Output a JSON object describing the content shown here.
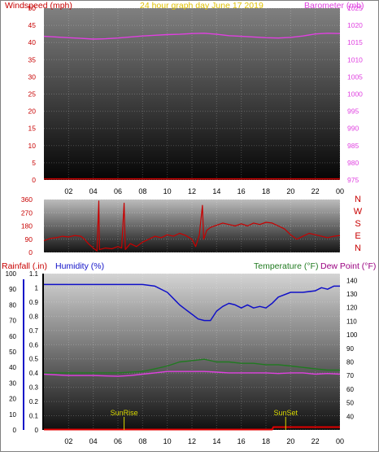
{
  "header": {
    "left": "Windspeed (mph)",
    "center": "24 hour graph day    June 17 2019",
    "right": "Barometer (mb)"
  },
  "colors": {
    "wind": "#c80000",
    "baro": "#e040e0",
    "title": "#e0c000",
    "humidity": "#1010c8",
    "temperature": "#207a20",
    "dew": "#9a0080",
    "rain": "#e00000",
    "event": "#d8d800"
  },
  "x_ticks": [
    "02",
    "04",
    "06",
    "08",
    "10",
    "12",
    "14",
    "16",
    "18",
    "20",
    "22",
    "00"
  ],
  "panel1": {
    "wind_ticks": [
      "0",
      "5",
      "10",
      "15",
      "20",
      "25",
      "30",
      "35",
      "40",
      "45",
      "50"
    ],
    "baro_ticks": [
      "975",
      "980",
      "985",
      "990",
      "995",
      "1000",
      "1005",
      "1010",
      "1015",
      "1020",
      "1025"
    ],
    "wind_range": [
      0,
      50
    ],
    "baro_range": [
      975,
      1025
    ],
    "baro_series": [
      {
        "x": 0,
        "y": 1016.8
      },
      {
        "x": 1,
        "y": 1016.6
      },
      {
        "x": 2,
        "y": 1016.4
      },
      {
        "x": 3,
        "y": 1016.2
      },
      {
        "x": 4,
        "y": 1016.0
      },
      {
        "x": 5,
        "y": 1016.1
      },
      {
        "x": 6,
        "y": 1016.3
      },
      {
        "x": 7,
        "y": 1016.6
      },
      {
        "x": 8,
        "y": 1016.9
      },
      {
        "x": 9,
        "y": 1017.1
      },
      {
        "x": 10,
        "y": 1017.3
      },
      {
        "x": 11,
        "y": 1017.4
      },
      {
        "x": 12,
        "y": 1017.6
      },
      {
        "x": 13,
        "y": 1017.7
      },
      {
        "x": 14,
        "y": 1017.4
      },
      {
        "x": 15,
        "y": 1017.0
      },
      {
        "x": 16,
        "y": 1016.8
      },
      {
        "x": 17,
        "y": 1016.6
      },
      {
        "x": 18,
        "y": 1016.4
      },
      {
        "x": 19,
        "y": 1016.3
      },
      {
        "x": 20,
        "y": 1016.5
      },
      {
        "x": 21,
        "y": 1016.9
      },
      {
        "x": 22,
        "y": 1017.5
      },
      {
        "x": 23,
        "y": 1017.7
      },
      {
        "x": 24,
        "y": 1017.6
      }
    ],
    "wind_series": [
      {
        "x": 0,
        "y": 0.3
      },
      {
        "x": 24,
        "y": 0.3
      }
    ]
  },
  "panel2": {
    "ticks": [
      "0",
      "90",
      "180",
      "270",
      "360"
    ],
    "dir_labels": [
      "N",
      "W",
      "S",
      "E",
      "N"
    ],
    "range": [
      0,
      360
    ],
    "series": [
      {
        "x": 0,
        "y": 80
      },
      {
        "x": 0.5,
        "y": 95
      },
      {
        "x": 1,
        "y": 100
      },
      {
        "x": 1.5,
        "y": 110
      },
      {
        "x": 2,
        "y": 105
      },
      {
        "x": 2.5,
        "y": 115
      },
      {
        "x": 3,
        "y": 110
      },
      {
        "x": 3.3,
        "y": 90
      },
      {
        "x": 3.6,
        "y": 60
      },
      {
        "x": 4,
        "y": 30
      },
      {
        "x": 4.3,
        "y": 10
      },
      {
        "x": 4.45,
        "y": 350
      },
      {
        "x": 4.5,
        "y": 20
      },
      {
        "x": 5,
        "y": 30
      },
      {
        "x": 5.5,
        "y": 25
      },
      {
        "x": 6,
        "y": 40
      },
      {
        "x": 6.3,
        "y": 30
      },
      {
        "x": 6.5,
        "y": 335
      },
      {
        "x": 6.6,
        "y": 20
      },
      {
        "x": 7,
        "y": 60
      },
      {
        "x": 7.5,
        "y": 40
      },
      {
        "x": 8,
        "y": 70
      },
      {
        "x": 8.5,
        "y": 90
      },
      {
        "x": 9,
        "y": 110
      },
      {
        "x": 9.5,
        "y": 100
      },
      {
        "x": 10,
        "y": 120
      },
      {
        "x": 10.5,
        "y": 110
      },
      {
        "x": 11,
        "y": 130
      },
      {
        "x": 11.5,
        "y": 115
      },
      {
        "x": 12,
        "y": 90
      },
      {
        "x": 12.3,
        "y": 40
      },
      {
        "x": 12.6,
        "y": 120
      },
      {
        "x": 12.85,
        "y": 320
      },
      {
        "x": 12.95,
        "y": 90
      },
      {
        "x": 13.2,
        "y": 150
      },
      {
        "x": 13.5,
        "y": 170
      },
      {
        "x": 14,
        "y": 185
      },
      {
        "x": 14.5,
        "y": 200
      },
      {
        "x": 15,
        "y": 190
      },
      {
        "x": 15.5,
        "y": 180
      },
      {
        "x": 16,
        "y": 195
      },
      {
        "x": 16.5,
        "y": 180
      },
      {
        "x": 17,
        "y": 200
      },
      {
        "x": 17.5,
        "y": 190
      },
      {
        "x": 18,
        "y": 205
      },
      {
        "x": 18.5,
        "y": 200
      },
      {
        "x": 19,
        "y": 180
      },
      {
        "x": 19.5,
        "y": 160
      },
      {
        "x": 20,
        "y": 120
      },
      {
        "x": 20.5,
        "y": 90
      },
      {
        "x": 21,
        "y": 110
      },
      {
        "x": 21.5,
        "y": 130
      },
      {
        "x": 22,
        "y": 120
      },
      {
        "x": 22.5,
        "y": 110
      },
      {
        "x": 23,
        "y": 100
      },
      {
        "x": 23.5,
        "y": 110
      },
      {
        "x": 24,
        "y": 115
      }
    ]
  },
  "panel3": {
    "labels": {
      "rain": "Rainfall (.in)",
      "humidity": "Humidity (%)",
      "temperature": "Temperature (°F)",
      "dew": "Dew Point (°F)"
    },
    "humidity_ticks": [
      "0",
      "10",
      "20",
      "30",
      "40",
      "50",
      "60",
      "70",
      "80",
      "90",
      "100"
    ],
    "rain_ticks": [
      "0",
      "0.1",
      "0.2",
      "0.3",
      "0.4",
      "0.5",
      "0.6",
      "0.7",
      "0.8",
      "0.9",
      "1",
      "1.1"
    ],
    "temp_ticks": [
      "40",
      "50",
      "60",
      "70",
      "80",
      "90",
      "100",
      "110",
      "120",
      "130",
      "140"
    ],
    "humidity_range": [
      0,
      100
    ],
    "rain_range": [
      0,
      1.1
    ],
    "temp_range": [
      30,
      145
    ],
    "events": [
      {
        "label": "SunRise",
        "x": 6.5
      },
      {
        "label": "SunSet",
        "x": 19.6
      }
    ],
    "humidity_series": [
      {
        "x": 0,
        "y": 93
      },
      {
        "x": 1,
        "y": 93
      },
      {
        "x": 2,
        "y": 93
      },
      {
        "x": 3,
        "y": 93
      },
      {
        "x": 4,
        "y": 93
      },
      {
        "x": 5,
        "y": 93
      },
      {
        "x": 6,
        "y": 93
      },
      {
        "x": 7,
        "y": 93
      },
      {
        "x": 8,
        "y": 93
      },
      {
        "x": 9,
        "y": 92
      },
      {
        "x": 10,
        "y": 88
      },
      {
        "x": 10.5,
        "y": 84
      },
      {
        "x": 11,
        "y": 80
      },
      {
        "x": 11.5,
        "y": 77
      },
      {
        "x": 12,
        "y": 74
      },
      {
        "x": 12.5,
        "y": 71
      },
      {
        "x": 13,
        "y": 70
      },
      {
        "x": 13.5,
        "y": 70
      },
      {
        "x": 14,
        "y": 76
      },
      {
        "x": 14.5,
        "y": 79
      },
      {
        "x": 15,
        "y": 81
      },
      {
        "x": 15.5,
        "y": 80
      },
      {
        "x": 16,
        "y": 78
      },
      {
        "x": 16.5,
        "y": 80
      },
      {
        "x": 17,
        "y": 78
      },
      {
        "x": 17.5,
        "y": 79
      },
      {
        "x": 18,
        "y": 78
      },
      {
        "x": 18.5,
        "y": 81
      },
      {
        "x": 19,
        "y": 85
      },
      {
        "x": 20,
        "y": 88
      },
      {
        "x": 21,
        "y": 88
      },
      {
        "x": 22,
        "y": 89
      },
      {
        "x": 22.5,
        "y": 91
      },
      {
        "x": 23,
        "y": 90
      },
      {
        "x": 23.5,
        "y": 92
      },
      {
        "x": 24,
        "y": 92
      }
    ],
    "temperature_series": [
      {
        "x": 0,
        "y": 72
      },
      {
        "x": 2,
        "y": 72
      },
      {
        "x": 4,
        "y": 72
      },
      {
        "x": 6,
        "y": 72
      },
      {
        "x": 8,
        "y": 73
      },
      {
        "x": 9,
        "y": 75
      },
      {
        "x": 10,
        "y": 77
      },
      {
        "x": 11,
        "y": 80
      },
      {
        "x": 12,
        "y": 81
      },
      {
        "x": 13,
        "y": 82
      },
      {
        "x": 14,
        "y": 80
      },
      {
        "x": 15,
        "y": 80
      },
      {
        "x": 16,
        "y": 79
      },
      {
        "x": 17,
        "y": 79
      },
      {
        "x": 18,
        "y": 78
      },
      {
        "x": 19,
        "y": 78
      },
      {
        "x": 20,
        "y": 77
      },
      {
        "x": 21,
        "y": 76
      },
      {
        "x": 22,
        "y": 75
      },
      {
        "x": 23,
        "y": 74
      },
      {
        "x": 24,
        "y": 74
      }
    ],
    "dew_series": [
      {
        "x": 0,
        "y": 71
      },
      {
        "x": 2,
        "y": 70
      },
      {
        "x": 4,
        "y": 70
      },
      {
        "x": 6,
        "y": 69.5
      },
      {
        "x": 7,
        "y": 70
      },
      {
        "x": 8,
        "y": 71
      },
      {
        "x": 9,
        "y": 72
      },
      {
        "x": 10,
        "y": 73
      },
      {
        "x": 11,
        "y": 73
      },
      {
        "x": 12,
        "y": 73
      },
      {
        "x": 13,
        "y": 73
      },
      {
        "x": 14,
        "y": 72.5
      },
      {
        "x": 15,
        "y": 72
      },
      {
        "x": 16,
        "y": 72
      },
      {
        "x": 17,
        "y": 72
      },
      {
        "x": 18,
        "y": 72
      },
      {
        "x": 19,
        "y": 71.5
      },
      {
        "x": 20,
        "y": 72
      },
      {
        "x": 21,
        "y": 72
      },
      {
        "x": 22,
        "y": 71
      },
      {
        "x": 23,
        "y": 71.5
      },
      {
        "x": 24,
        "y": 71
      }
    ],
    "rain_series": [
      {
        "x": 0,
        "y": 0.003
      },
      {
        "x": 18.5,
        "y": 0.003
      },
      {
        "x": 18.6,
        "y": 0.02
      },
      {
        "x": 24,
        "y": 0.02
      }
    ]
  }
}
